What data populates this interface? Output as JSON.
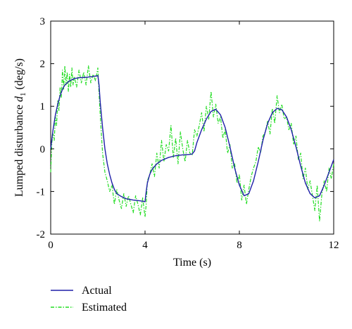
{
  "chart_data": {
    "type": "line",
    "title": "",
    "xlabel": "Time (s)",
    "ylabel_main": "Lumped disturbance ",
    "ylabel_var": "d",
    "ylabel_sub": "1",
    "ylabel_unit": " (deg/s)",
    "xlim": [
      0,
      12
    ],
    "ylim": [
      -2,
      3
    ],
    "xticks": [
      0,
      4,
      8,
      12
    ],
    "yticks": [
      -2,
      -1,
      0,
      1,
      2,
      3
    ],
    "grid": false,
    "legend_position": "bottom-left, below plot",
    "colors": {
      "actual": "#1f1fa8",
      "estimated": "#22dd22"
    },
    "series": [
      {
        "name": "Actual",
        "style": "solid",
        "x": [
          0,
          0.1,
          0.2,
          0.3,
          0.4,
          0.5,
          0.6,
          0.8,
          1.0,
          1.2,
          1.5,
          1.8,
          2.0,
          2.05,
          2.1,
          2.2,
          2.3,
          2.4,
          2.5,
          2.6,
          2.7,
          2.8,
          3.0,
          3.2,
          3.5,
          3.8,
          4.0,
          4.05,
          4.1,
          4.2,
          4.3,
          4.5,
          4.7,
          5.0,
          5.3,
          5.6,
          5.9,
          6.0,
          6.1,
          6.2,
          6.4,
          6.6,
          6.8,
          7.0,
          7.2,
          7.4,
          7.6,
          7.8,
          8.0,
          8.2,
          8.4,
          8.6,
          8.8,
          9.0,
          9.2,
          9.4,
          9.6,
          9.8,
          10.0,
          10.2,
          10.4,
          10.6,
          10.8,
          11.0,
          11.2,
          11.4,
          11.6,
          11.8,
          12.0
        ],
        "y": [
          0.0,
          0.45,
          0.8,
          1.05,
          1.25,
          1.4,
          1.5,
          1.6,
          1.65,
          1.67,
          1.68,
          1.7,
          1.72,
          1.5,
          1.1,
          0.5,
          0.0,
          -0.35,
          -0.6,
          -0.8,
          -0.95,
          -1.05,
          -1.12,
          -1.17,
          -1.2,
          -1.22,
          -1.24,
          -1.0,
          -0.8,
          -0.6,
          -0.48,
          -0.35,
          -0.27,
          -0.2,
          -0.16,
          -0.14,
          -0.13,
          -0.12,
          -0.05,
          0.15,
          0.45,
          0.7,
          0.88,
          0.93,
          0.8,
          0.5,
          0.05,
          -0.45,
          -0.85,
          -1.1,
          -1.05,
          -0.75,
          -0.3,
          0.2,
          0.6,
          0.85,
          0.95,
          0.92,
          0.75,
          0.45,
          0.05,
          -0.4,
          -0.8,
          -1.05,
          -1.15,
          -1.1,
          -0.85,
          -0.55,
          -0.25
        ]
      },
      {
        "name": "Estimated",
        "style": "dash-dot",
        "x": [
          0,
          0.05,
          0.1,
          0.15,
          0.2,
          0.25,
          0.3,
          0.35,
          0.4,
          0.45,
          0.5,
          0.55,
          0.6,
          0.65,
          0.7,
          0.75,
          0.8,
          0.85,
          0.9,
          0.95,
          1.0,
          1.1,
          1.2,
          1.3,
          1.4,
          1.5,
          1.6,
          1.7,
          1.8,
          1.9,
          2.0,
          2.05,
          2.1,
          2.15,
          2.2,
          2.3,
          2.4,
          2.5,
          2.6,
          2.7,
          2.8,
          2.9,
          3.0,
          3.1,
          3.2,
          3.3,
          3.4,
          3.5,
          3.6,
          3.7,
          3.8,
          3.9,
          4.0,
          4.05,
          4.1,
          4.2,
          4.3,
          4.4,
          4.5,
          4.6,
          4.7,
          4.8,
          4.9,
          5.0,
          5.1,
          5.2,
          5.3,
          5.4,
          5.5,
          5.6,
          5.7,
          5.8,
          5.9,
          6.0,
          6.1,
          6.2,
          6.3,
          6.4,
          6.5,
          6.6,
          6.7,
          6.8,
          6.9,
          7.0,
          7.1,
          7.2,
          7.3,
          7.4,
          7.5,
          7.6,
          7.7,
          7.8,
          7.9,
          8.0,
          8.1,
          8.2,
          8.3,
          8.4,
          8.5,
          8.6,
          8.7,
          8.8,
          8.9,
          9.0,
          9.1,
          9.2,
          9.3,
          9.4,
          9.5,
          9.6,
          9.7,
          9.8,
          9.9,
          10.0,
          10.1,
          10.2,
          10.3,
          10.4,
          10.5,
          10.6,
          10.7,
          10.8,
          10.9,
          11.0,
          11.1,
          11.2,
          11.3,
          11.4,
          11.5,
          11.6,
          11.7,
          11.8,
          11.9,
          12.0
        ],
        "y": [
          -0.55,
          0.15,
          0.35,
          0.2,
          0.75,
          0.55,
          1.15,
          0.9,
          1.45,
          1.2,
          1.85,
          1.4,
          1.95,
          1.5,
          1.8,
          1.35,
          1.75,
          1.45,
          1.9,
          1.5,
          1.7,
          1.45,
          1.85,
          1.55,
          1.8,
          1.5,
          1.95,
          1.55,
          1.75,
          1.6,
          1.9,
          1.3,
          0.8,
          0.35,
          -0.1,
          -0.55,
          -0.75,
          -1.0,
          -0.85,
          -1.3,
          -0.95,
          -1.2,
          -1.4,
          -1.05,
          -1.35,
          -1.1,
          -1.3,
          -1.5,
          -1.1,
          -1.3,
          -1.55,
          -1.15,
          -1.6,
          -1.3,
          -0.75,
          -0.6,
          -0.35,
          -0.65,
          -0.1,
          -0.45,
          0.2,
          -0.3,
          0.1,
          -0.05,
          0.55,
          -0.2,
          0.25,
          -0.35,
          0.4,
          0.0,
          -0.3,
          0.2,
          -0.1,
          -0.15,
          0.45,
          0.3,
          0.55,
          0.85,
          0.4,
          1.0,
          0.7,
          1.35,
          0.75,
          1.05,
          0.6,
          0.75,
          0.25,
          0.45,
          -0.1,
          0.1,
          -0.45,
          -0.35,
          -0.8,
          -0.6,
          -1.2,
          -0.85,
          -1.3,
          -0.95,
          -0.65,
          -0.45,
          -0.3,
          0.05,
          -0.1,
          0.3,
          0.4,
          0.65,
          0.35,
          0.95,
          0.6,
          1.25,
          0.85,
          1.05,
          0.7,
          0.75,
          0.45,
          0.6,
          0.1,
          0.3,
          -0.25,
          -0.1,
          -0.7,
          -0.45,
          -0.95,
          -0.75,
          -1.1,
          -1.45,
          -0.85,
          -1.7,
          -1.05,
          -0.75,
          -1.0,
          -0.45,
          -0.7,
          -0.35
        ]
      }
    ]
  }
}
